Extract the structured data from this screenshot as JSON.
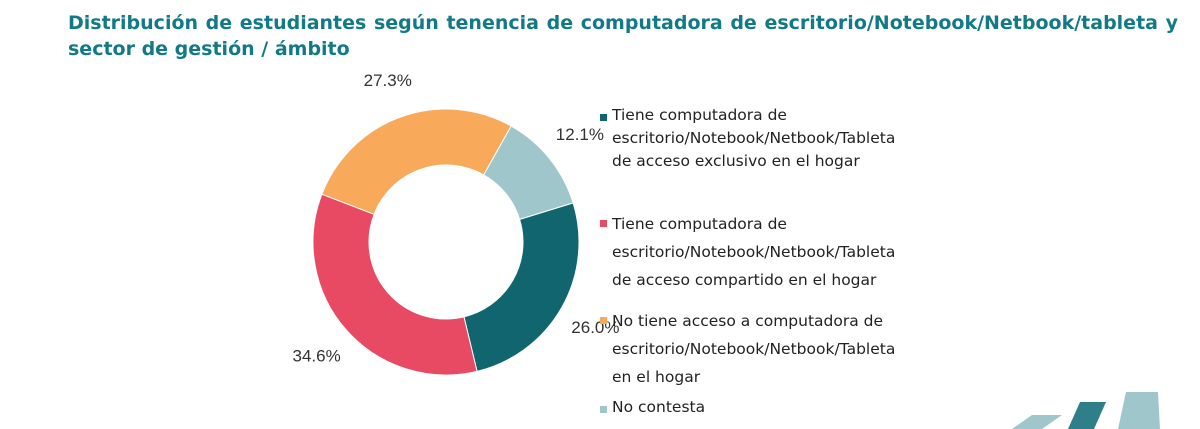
{
  "title": "Distribución de estudiantes según tenencia de computadora de escritorio/Notebook/Netbook/tableta y sector de gestión / ámbito",
  "chart_data": {
    "type": "pie",
    "donut": true,
    "title": "Distribución de estudiantes según tenencia de computadora de escritorio/Notebook/Netbook/tableta y sector de gestión / ámbito",
    "legend_position": "right",
    "slices": [
      {
        "label": "Tiene computadora de escritorio/Notebook/Netbook/Tableta de acceso exclusivo en el hogar",
        "value": 26.0,
        "display": "26.0%",
        "color": "#10656f"
      },
      {
        "label": "Tiene computadora de escritorio/Notebook/Netbook/Tableta de acceso compartido en el hogar",
        "value": 34.6,
        "display": "34.6%",
        "color": "#e84a64"
      },
      {
        "label": "No tiene acceso a computadora de escritorio/Notebook/Netbook/Tableta en el hogar",
        "value": 27.3,
        "display": "27.3%",
        "color": "#f8a95a"
      },
      {
        "label": "No contesta",
        "value": 12.1,
        "display": "12.1%",
        "color": "#9fc6cb"
      }
    ]
  },
  "legend": [
    {
      "lines": [
        "Tiene computadora de",
        "escritorio/Notebook/Netbook/Tableta",
        "de acceso exclusivo en el hogar"
      ]
    },
    {
      "lines": [
        "Tiene computadora de",
        "escritorio/Notebook/Netbook/Tableta",
        "de acceso compartido en el hogar"
      ]
    },
    {
      "lines": [
        "No tiene acceso a computadora de",
        "escritorio/Notebook/Netbook/Tableta",
        "en el hogar"
      ]
    },
    {
      "lines": [
        "No contesta"
      ]
    }
  ],
  "colors": {
    "title": "#127a85",
    "deco_light": "#9fc6cb",
    "deco_dark": "#2f7f8a"
  }
}
